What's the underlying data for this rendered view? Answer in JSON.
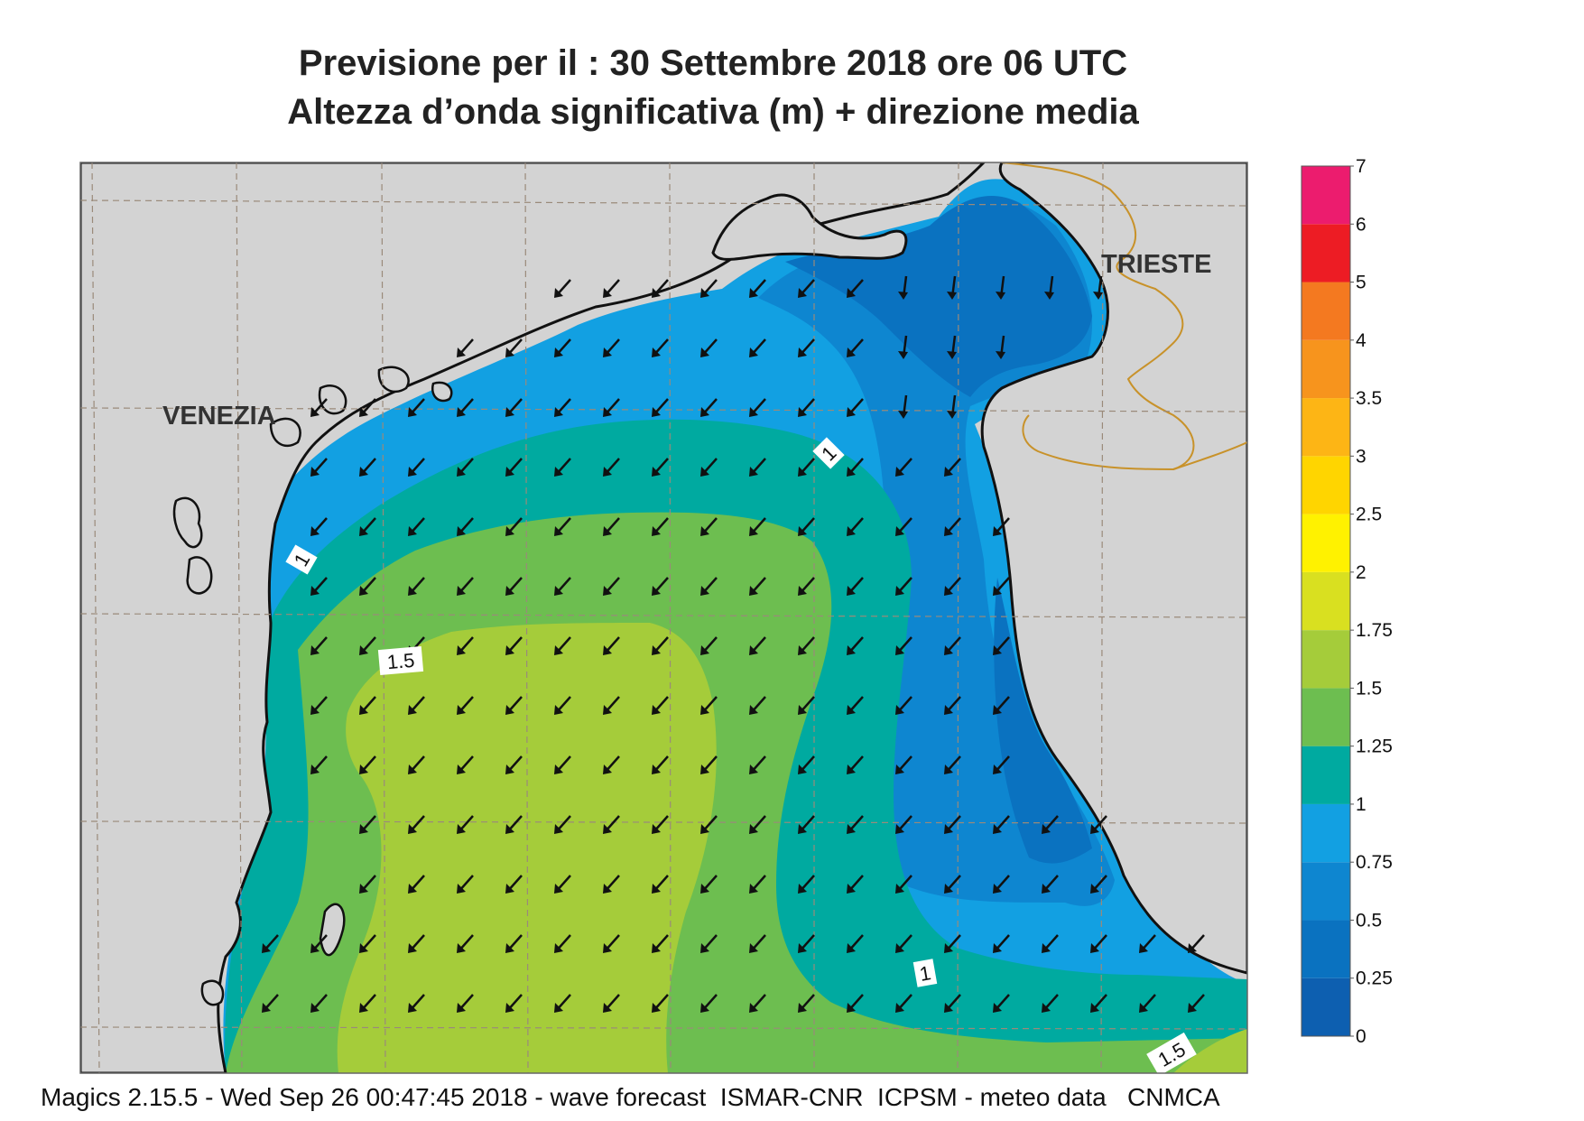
{
  "header": {
    "title_line1": "Previsione per il  :  30 Settembre 2018   ore 06 UTC",
    "title_line2": "Altezza d’onda significativa (m) + direzione media"
  },
  "places": {
    "venezia": "VENEZIA",
    "trieste": "TRIESTE"
  },
  "contour_labels": [
    "1",
    "1",
    "1",
    "1.5",
    "1.5"
  ],
  "legend": {
    "bins": [
      {
        "label": "0",
        "color": "#0d5fb0"
      },
      {
        "label": "0.25",
        "color": "#0a72c0"
      },
      {
        "label": "0.5",
        "color": "#0e86d0"
      },
      {
        "label": "0.75",
        "color": "#12a0e2"
      },
      {
        "label": "1",
        "color": "#00aaa0"
      },
      {
        "label": "1.25",
        "color": "#6dbe50"
      },
      {
        "label": "1.5",
        "color": "#a5cc3a"
      },
      {
        "label": "1.75",
        "color": "#d9e020"
      },
      {
        "label": "2",
        "color": "#fff200"
      },
      {
        "label": "2.5",
        "color": "#ffd500"
      },
      {
        "label": "3",
        "color": "#fdb515"
      },
      {
        "label": "3.5",
        "color": "#f7941d"
      },
      {
        "label": "4",
        "color": "#f47920"
      },
      {
        "label": "5",
        "color": "#ed1c24"
      },
      {
        "label": "6",
        "color": "#ec1c6e"
      },
      {
        "label": "7",
        "color": ""
      }
    ]
  },
  "colors": {
    "land": "#d3d3d3",
    "coast": "#111111",
    "border": "#c8922a",
    "grid": "#9a8a7a"
  },
  "wave_direction_icon": "arrow-southwest-icon",
  "footer": {
    "credits": "Magics 2.15.5 - Wed Sep 26 00:47:45 2018 - wave forecast  ISMAR-CNR  ICPSM - meteo data   CNMCA"
  }
}
